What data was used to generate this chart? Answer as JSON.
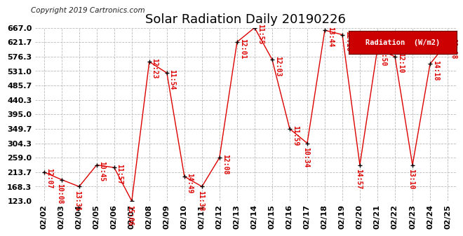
{
  "title": "Solar Radiation Daily 20190226",
  "copyright": "Copyright 2019 Cartronics.com",
  "legend_label": "Radiation  (W/m2)",
  "background_color": "#ffffff",
  "plot_bg_color": "#ffffff",
  "grid_color": "#bbbbbb",
  "line_color": "#dd0000",
  "marker_color": "#000000",
  "legend_bg": "#cc0000",
  "legend_fg": "#ffffff",
  "ylim": [
    123.0,
    667.0
  ],
  "yticks": [
    123.0,
    168.3,
    213.7,
    259.0,
    304.3,
    349.7,
    395.0,
    440.3,
    485.7,
    531.0,
    576.3,
    621.7,
    667.0
  ],
  "dates": [
    "02/02",
    "02/03",
    "02/04",
    "02/05",
    "02/06",
    "02/07",
    "02/08",
    "02/09",
    "02/10",
    "02/11",
    "02/12",
    "02/13",
    "02/14",
    "02/15",
    "02/16",
    "02/17",
    "02/18",
    "02/19",
    "02/20",
    "02/21",
    "02/22",
    "02/23",
    "02/24",
    "02/25"
  ],
  "values": [
    213.7,
    190.0,
    168.3,
    236.0,
    228.0,
    123.0,
    560.0,
    525.0,
    200.0,
    168.3,
    259.0,
    622.0,
    667.0,
    567.0,
    349.7,
    304.3,
    659.0,
    645.0,
    236.0,
    600.0,
    576.3,
    236.0,
    553.0,
    621.7
  ],
  "time_labels": [
    "12:07",
    "10:08",
    "13:31",
    "10:45",
    "11:57",
    "15:06",
    "12:23",
    "11:54",
    "14:49",
    "11:38",
    "12:08",
    "12:01",
    "11:55",
    "12:03",
    "11:59",
    "10:34",
    "13:44",
    "12:16",
    "14:57",
    "11:50",
    "12:10",
    "13:10",
    "14:18",
    "11:08"
  ],
  "label_va": [
    "bottom",
    "bottom",
    "bottom",
    "bottom",
    "bottom",
    "bottom",
    "bottom",
    "bottom",
    "bottom",
    "bottom",
    "bottom",
    "bottom",
    "bottom",
    "bottom",
    "bottom",
    "bottom",
    "bottom",
    "bottom",
    "bottom",
    "bottom",
    "bottom",
    "bottom",
    "bottom",
    "bottom"
  ],
  "label_above": [
    true,
    false,
    false,
    true,
    true,
    false,
    true,
    true,
    true,
    false,
    true,
    true,
    true,
    true,
    true,
    false,
    true,
    true,
    false,
    true,
    true,
    false,
    true,
    true
  ],
  "title_fontsize": 13,
  "label_fontsize": 7,
  "tick_fontsize": 8,
  "copyright_fontsize": 7.5
}
